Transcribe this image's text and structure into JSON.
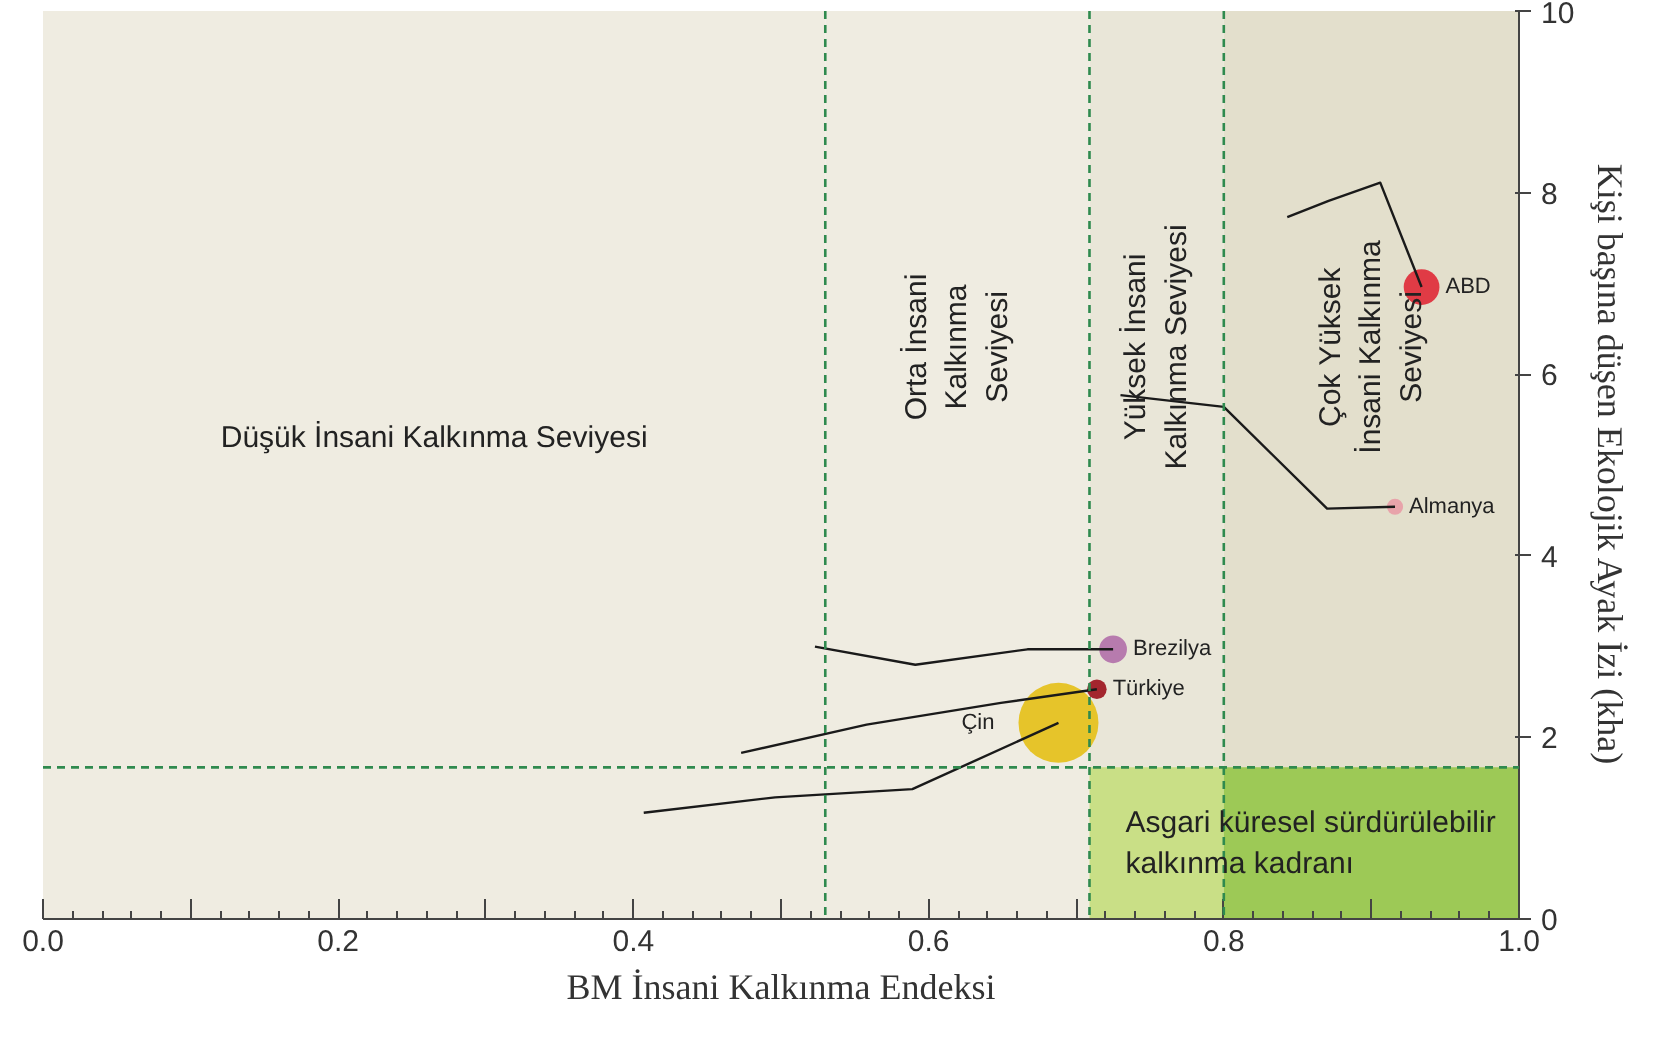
{
  "chart_data": {
    "type": "line",
    "xlabel": "BM İnsani Kalkınma Endeksi",
    "ylabel": "Kişi başına düşen Ekolojik Ayak İzi (kha)",
    "xlim": [
      0,
      1
    ],
    "ylim": [
      0,
      10
    ],
    "xticks": [
      {
        "value": 0,
        "label": "0.0"
      },
      {
        "value": 0.1,
        "label": null
      },
      0.2,
      {
        "value": 0.3,
        "label": null
      },
      0.4,
      {
        "value": 0.5,
        "label": null
      },
      0.6,
      {
        "value": 0.7,
        "label": null
      },
      0.8,
      {
        "value": 0.9,
        "label": null
      },
      {
        "value": 1,
        "label": "1.0"
      }
    ],
    "annotations": [
      "Asgari küresel sürdürülebilir\nkalkınma kadranı"
    ],
    "yticks": [
      0,
      2,
      4,
      6,
      8,
      10
    ],
    "grid": false,
    "bands": [
      {
        "axis": "x",
        "from": 0,
        "to": 0.53,
        "label": "Düşük İnsani Kalkınma Seviyesi",
        "color": "#efece1"
      },
      {
        "axis": "x",
        "from": 0.53,
        "to": 0.709,
        "label": "Orta İnsani\nKalkınma\nSeviyesi",
        "color": "#efece1"
      },
      {
        "axis": "x",
        "from": 0.709,
        "to": 0.8,
        "label": "Yüksek İnsani\nKalkınma Seviyesi",
        "color": "#e9e6d8"
      },
      {
        "axis": "x",
        "from": 0.8,
        "to": 1.0,
        "label": "Çok Yüksek\nİnsani Kalkınma\nSeviyesi",
        "color": "#e3dfcc"
      }
    ],
    "ref_lines": [
      {
        "axis": "x",
        "value": 0.53,
        "color": "#2f8a4e",
        "line_style": "dashed"
      },
      {
        "axis": "x",
        "value": 0.709,
        "color": "#2f8a4e",
        "line_style": "dashed"
      },
      {
        "axis": "x",
        "value": 0.8,
        "color": "#2f8a4e",
        "line_style": "dashed"
      },
      {
        "axis": "y",
        "value": 1.67,
        "color": "#2f8a4e",
        "line_style": "dashed"
      }
    ],
    "series": [
      {
        "type": "area",
        "color": "#c9df86",
        "x": [
          0.709,
          0.8
        ],
        "values": [
          1.67,
          1.67
        ]
      },
      {
        "type": "area",
        "color": "#9dc956",
        "x": [
          0.8,
          1.0
        ],
        "values": [
          1.67,
          1.67
        ]
      },
      {
        "color": "#1a1a1a",
        "x": [
          0.843,
          0.871,
          0.906,
          0.934
        ],
        "values": [
          7.73,
          7.91,
          8.11,
          6.96
        ]
      },
      {
        "color": "#1a1a1a",
        "x": [
          0.73,
          0.8,
          0.87,
          0.916
        ],
        "values": [
          5.77,
          5.64,
          4.52,
          4.54
        ]
      },
      {
        "color": "#1a1a1a",
        "x": [
          0.523,
          0.591,
          0.667,
          0.725
        ],
        "values": [
          3.0,
          2.8,
          2.97,
          2.97
        ]
      },
      {
        "color": "#1a1a1a",
        "x": [
          0.473,
          0.558,
          0.649,
          0.714
        ],
        "values": [
          1.83,
          2.14,
          2.38,
          2.53
        ]
      },
      {
        "color": "#1a1a1a",
        "x": [
          0.407,
          0.496,
          0.589,
          0.688
        ],
        "values": [
          1.17,
          1.34,
          1.43,
          2.16
        ]
      },
      {
        "type": "bubble",
        "name": "ABD",
        "color": "#e03b45",
        "x": [
          0.934
        ],
        "values": [
          6.96
        ],
        "sizes": [
          0.2
        ]
      },
      {
        "type": "bubble",
        "name": "Almanya",
        "color": "#e8a3aa",
        "x": [
          0.916
        ],
        "values": [
          4.54
        ],
        "sizes": [
          0.04
        ]
      },
      {
        "type": "bubble",
        "name": "Brezilya",
        "color": "#b77bae",
        "x": [
          0.725
        ],
        "values": [
          2.97
        ],
        "sizes": [
          0.12
        ]
      },
      {
        "type": "bubble",
        "name": "Türkiye",
        "color": "#a3262e",
        "x": [
          0.714
        ],
        "values": [
          2.53
        ],
        "sizes": [
          0.06
        ]
      },
      {
        "type": "bubble",
        "name": "Çin",
        "color": "#e6c42a",
        "x": [
          0.688
        ],
        "values": [
          2.16
        ],
        "sizes": [
          1
        ]
      }
    ]
  }
}
